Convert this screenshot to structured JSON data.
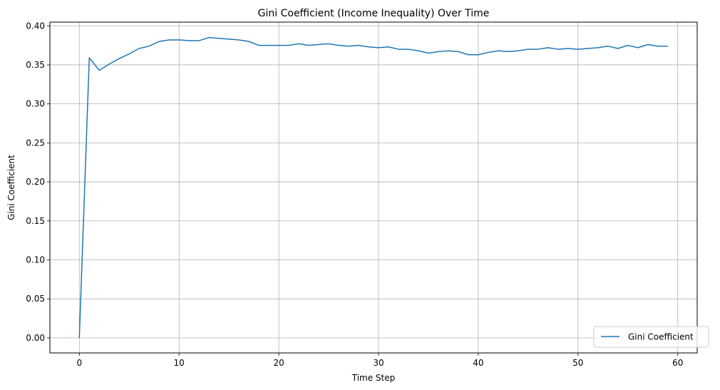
{
  "chart_data": {
    "type": "line",
    "title": "Gini Coefficient (Income Inequality) Over Time",
    "xlabel": "Time Step",
    "ylabel": "Gini Coefficient",
    "xlim": [
      -2.95,
      61.95
    ],
    "ylim": [
      -0.0193,
      0.4048
    ],
    "xticks": [
      0,
      10,
      20,
      30,
      40,
      50,
      60
    ],
    "xtick_labels": [
      "0",
      "10",
      "20",
      "30",
      "40",
      "50",
      "60"
    ],
    "yticks": [
      0.0,
      0.05,
      0.1,
      0.15,
      0.2,
      0.25,
      0.3,
      0.35,
      0.4
    ],
    "ytick_labels": [
      "0.00",
      "0.05",
      "0.10",
      "0.15",
      "0.20",
      "0.25",
      "0.30",
      "0.35",
      "0.40"
    ],
    "grid": true,
    "legend_position": "lower-right",
    "series": [
      {
        "name": "Gini Coefficient",
        "color": "#1f77b4",
        "x": [
          0,
          1,
          2,
          3,
          4,
          5,
          6,
          7,
          8,
          9,
          10,
          11,
          12,
          13,
          14,
          15,
          16,
          17,
          18,
          19,
          20,
          21,
          22,
          23,
          24,
          25,
          26,
          27,
          28,
          29,
          30,
          31,
          32,
          33,
          34,
          35,
          36,
          37,
          38,
          39,
          40,
          41,
          42,
          43,
          44,
          45,
          46,
          47,
          48,
          49,
          50,
          51,
          52,
          53,
          54,
          55,
          56,
          57,
          58,
          59
        ],
        "y": [
          0.0,
          0.359,
          0.343,
          0.351,
          0.358,
          0.364,
          0.371,
          0.374,
          0.38,
          0.382,
          0.382,
          0.381,
          0.381,
          0.385,
          0.384,
          0.383,
          0.382,
          0.38,
          0.375,
          0.375,
          0.375,
          0.375,
          0.377,
          0.375,
          0.376,
          0.377,
          0.375,
          0.374,
          0.375,
          0.373,
          0.372,
          0.373,
          0.37,
          0.37,
          0.368,
          0.365,
          0.367,
          0.368,
          0.367,
          0.363,
          0.363,
          0.366,
          0.368,
          0.367,
          0.368,
          0.37,
          0.37,
          0.372,
          0.37,
          0.371,
          0.37,
          0.371,
          0.372,
          0.374,
          0.371,
          0.375,
          0.372,
          0.376,
          0.374,
          0.374
        ]
      }
    ]
  }
}
